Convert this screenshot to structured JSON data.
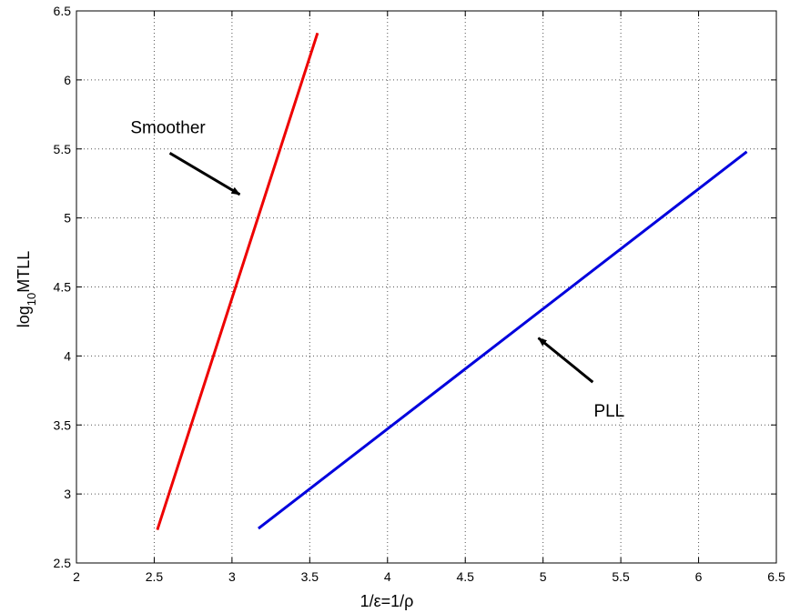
{
  "chart_data": {
    "type": "line",
    "title": "",
    "xlabel": "1/ε=1/ρ",
    "ylabel": {
      "base": "log",
      "subscript": "10",
      "rest": "MTLL"
    },
    "xlim": [
      2,
      6.5
    ],
    "ylim": [
      2.5,
      6.5
    ],
    "xticks": [
      "2",
      "2.5",
      "3",
      "3.5",
      "4",
      "4.5",
      "5",
      "5.5",
      "6",
      "6.5"
    ],
    "yticks": [
      "2.5",
      "3",
      "3.5",
      "4",
      "4.5",
      "5",
      "5.5",
      "6",
      "6.5"
    ],
    "grid": true,
    "series": [
      {
        "name": "Smoother",
        "color": "#ee0000",
        "x": [
          2.52,
          3.55
        ],
        "y": [
          2.74,
          6.34
        ]
      },
      {
        "name": "PLL",
        "color": "#0000dd",
        "x": [
          3.17,
          6.31
        ],
        "y": [
          2.75,
          5.48
        ]
      }
    ],
    "annotations": [
      {
        "text": "Smoother",
        "series": "Smoother",
        "arrow_from": [
          2.6,
          5.47
        ],
        "arrow_to": [
          3.05,
          5.17
        ]
      },
      {
        "text": "PLL",
        "series": "PLL",
        "arrow_from": [
          5.32,
          3.81
        ],
        "arrow_to": [
          4.97,
          4.13
        ]
      }
    ]
  }
}
